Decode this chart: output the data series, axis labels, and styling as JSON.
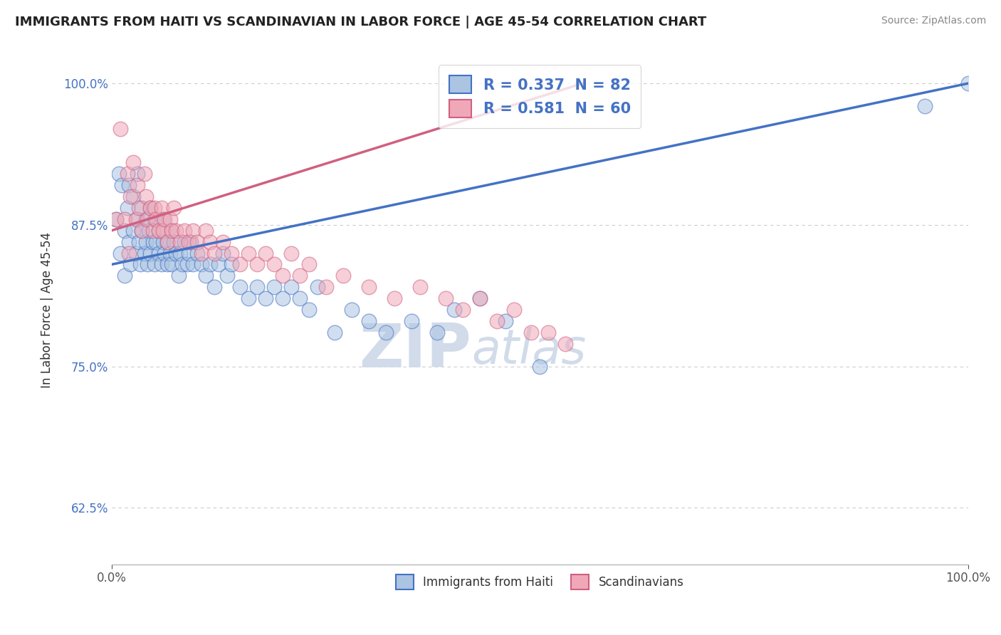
{
  "title": "IMMIGRANTS FROM HAITI VS SCANDINAVIAN IN LABOR FORCE | AGE 45-54 CORRELATION CHART",
  "source": "Source: ZipAtlas.com",
  "ylabel": "In Labor Force | Age 45-54",
  "xlim": [
    0.0,
    1.0
  ],
  "ylim": [
    0.575,
    1.025
  ],
  "yticks": [
    0.625,
    0.75,
    0.875,
    1.0
  ],
  "ytick_labels": [
    "62.5%",
    "75.0%",
    "87.5%",
    "100.0%"
  ],
  "xticks": [
    0.0,
    1.0
  ],
  "xtick_labels": [
    "0.0%",
    "100.0%"
  ],
  "haiti_R": 0.337,
  "haiti_N": 82,
  "scand_R": 0.581,
  "scand_N": 60,
  "haiti_color": "#aac4e2",
  "scand_color": "#f0a8b8",
  "haiti_line_color": "#4472C4",
  "scand_line_color": "#D06080",
  "watermark_color": "#ccd8e8",
  "haiti_x": [
    0.005,
    0.008,
    0.01,
    0.012,
    0.015,
    0.015,
    0.018,
    0.02,
    0.02,
    0.022,
    0.025,
    0.025,
    0.028,
    0.03,
    0.03,
    0.032,
    0.033,
    0.035,
    0.035,
    0.038,
    0.04,
    0.04,
    0.042,
    0.043,
    0.045,
    0.045,
    0.048,
    0.05,
    0.05,
    0.052,
    0.055,
    0.055,
    0.058,
    0.06,
    0.06,
    0.062,
    0.065,
    0.065,
    0.068,
    0.07,
    0.07,
    0.072,
    0.075,
    0.078,
    0.08,
    0.082,
    0.085,
    0.088,
    0.09,
    0.092,
    0.095,
    0.1,
    0.105,
    0.11,
    0.115,
    0.12,
    0.125,
    0.13,
    0.135,
    0.14,
    0.15,
    0.16,
    0.17,
    0.18,
    0.19,
    0.2,
    0.21,
    0.22,
    0.23,
    0.24,
    0.26,
    0.28,
    0.3,
    0.32,
    0.35,
    0.38,
    0.4,
    0.43,
    0.46,
    0.5,
    0.95,
    1.0
  ],
  "haiti_y": [
    0.88,
    0.92,
    0.85,
    0.91,
    0.87,
    0.83,
    0.89,
    0.86,
    0.91,
    0.84,
    0.87,
    0.9,
    0.85,
    0.88,
    0.92,
    0.86,
    0.84,
    0.87,
    0.89,
    0.85,
    0.86,
    0.88,
    0.84,
    0.87,
    0.85,
    0.89,
    0.86,
    0.88,
    0.84,
    0.86,
    0.85,
    0.87,
    0.84,
    0.86,
    0.88,
    0.85,
    0.84,
    0.86,
    0.85,
    0.87,
    0.84,
    0.86,
    0.85,
    0.83,
    0.85,
    0.84,
    0.86,
    0.84,
    0.85,
    0.86,
    0.84,
    0.85,
    0.84,
    0.83,
    0.84,
    0.82,
    0.84,
    0.85,
    0.83,
    0.84,
    0.82,
    0.81,
    0.82,
    0.81,
    0.82,
    0.81,
    0.82,
    0.81,
    0.8,
    0.82,
    0.78,
    0.8,
    0.79,
    0.78,
    0.79,
    0.78,
    0.8,
    0.81,
    0.79,
    0.75,
    0.98,
    1.0
  ],
  "scand_x": [
    0.005,
    0.01,
    0.015,
    0.018,
    0.02,
    0.022,
    0.025,
    0.028,
    0.03,
    0.032,
    0.035,
    0.038,
    0.04,
    0.042,
    0.045,
    0.048,
    0.05,
    0.052,
    0.055,
    0.058,
    0.06,
    0.062,
    0.065,
    0.068,
    0.07,
    0.072,
    0.075,
    0.08,
    0.085,
    0.09,
    0.095,
    0.1,
    0.105,
    0.11,
    0.115,
    0.12,
    0.13,
    0.14,
    0.15,
    0.16,
    0.17,
    0.18,
    0.19,
    0.2,
    0.21,
    0.22,
    0.23,
    0.25,
    0.27,
    0.3,
    0.33,
    0.36,
    0.39,
    0.41,
    0.43,
    0.45,
    0.47,
    0.49,
    0.51,
    0.53
  ],
  "scand_y": [
    0.88,
    0.96,
    0.88,
    0.92,
    0.85,
    0.9,
    0.93,
    0.88,
    0.91,
    0.89,
    0.87,
    0.92,
    0.9,
    0.88,
    0.89,
    0.87,
    0.89,
    0.88,
    0.87,
    0.89,
    0.87,
    0.88,
    0.86,
    0.88,
    0.87,
    0.89,
    0.87,
    0.86,
    0.87,
    0.86,
    0.87,
    0.86,
    0.85,
    0.87,
    0.86,
    0.85,
    0.86,
    0.85,
    0.84,
    0.85,
    0.84,
    0.85,
    0.84,
    0.83,
    0.85,
    0.83,
    0.84,
    0.82,
    0.83,
    0.82,
    0.81,
    0.82,
    0.81,
    0.8,
    0.81,
    0.79,
    0.8,
    0.78,
    0.78,
    0.77
  ],
  "haiti_line_x0": 0.0,
  "haiti_line_y0": 0.84,
  "haiti_line_x1": 1.0,
  "haiti_line_y1": 1.0,
  "scand_line_x0": 0.0,
  "scand_line_y0": 0.87,
  "scand_line_x1": 0.55,
  "scand_line_y1": 1.0
}
